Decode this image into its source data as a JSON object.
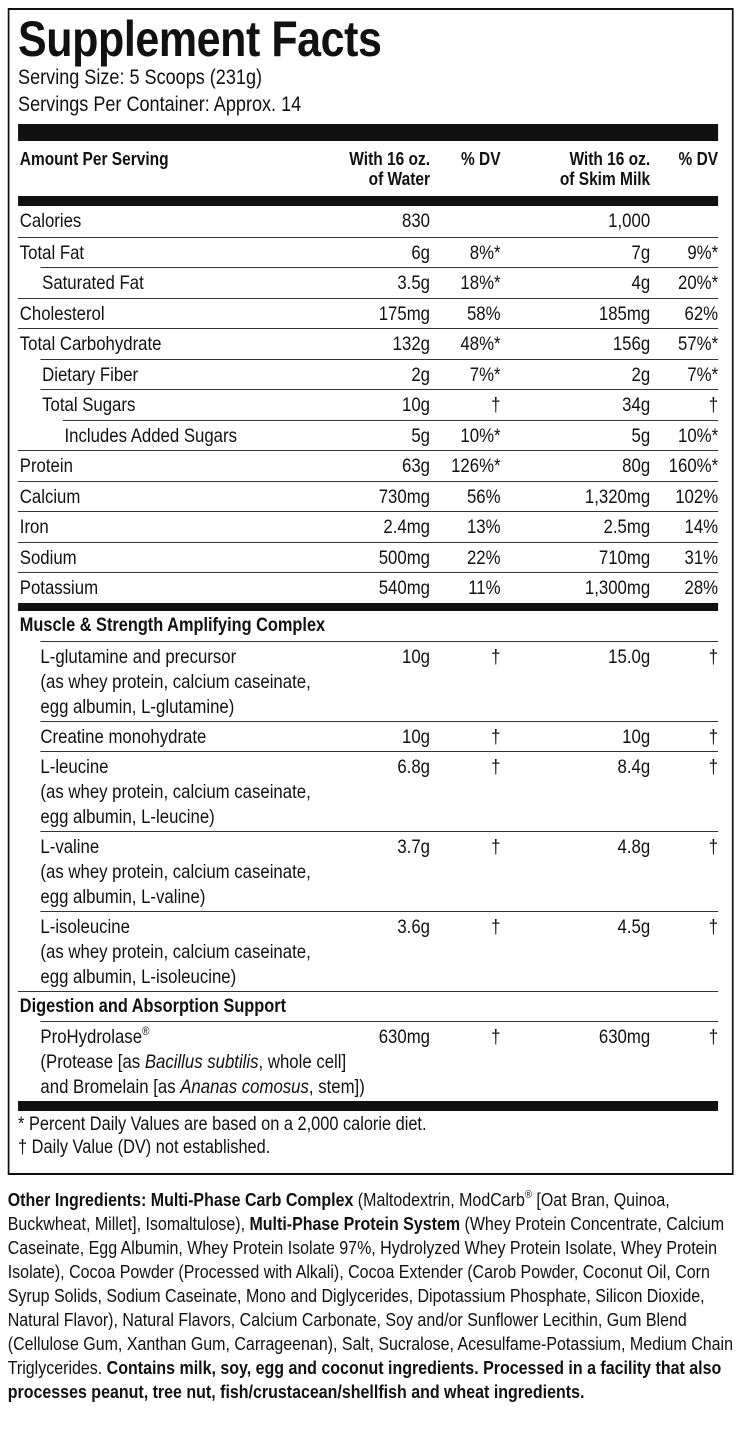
{
  "title": "Supplement Facts",
  "serving_size": "Serving Size: 5 Scoops (231g)",
  "servings_per_container": "Servings Per Container: Approx. 14",
  "header": {
    "amount": "Amount Per Serving",
    "water": [
      "With 16 oz.",
      "of Water"
    ],
    "water_dv": "% DV",
    "milk": [
      "With 16 oz.",
      "of Skim Milk"
    ],
    "milk_dv": "% DV"
  },
  "nutrients": [
    {
      "name": "Calories",
      "water": "830",
      "milk": "1,000"
    },
    {
      "name": "Total Fat",
      "water": "6g",
      "water_dv": "8%*",
      "milk": "7g",
      "milk_dv": "9%*",
      "sub": [
        {
          "name": "Saturated Fat",
          "water": "3.5g",
          "water_dv": "18%*",
          "milk": "4g",
          "milk_dv": "20%*"
        }
      ]
    },
    {
      "name": "Cholesterol",
      "water": "175mg",
      "water_dv": "58%",
      "milk": "185mg",
      "milk_dv": "62%"
    },
    {
      "name": "Total Carbohydrate",
      "water": "132g",
      "water_dv": "48%*",
      "milk": "156g",
      "milk_dv": "57%*",
      "sub": [
        {
          "name": "Dietary Fiber",
          "water": "2g",
          "water_dv": "7%*",
          "milk": "2g",
          "milk_dv": "7%*"
        },
        {
          "name": "Total Sugars",
          "water": "10g",
          "water_dv": "†",
          "milk": "34g",
          "milk_dv": "†",
          "sub": [
            {
              "name": "Includes Added Sugars",
              "water": "5g",
              "water_dv": "10%*",
              "milk": "5g",
              "milk_dv": "10%*"
            }
          ]
        }
      ]
    },
    {
      "name": "Protein",
      "water": "63g",
      "water_dv": "126%*",
      "milk": "80g",
      "milk_dv": "160%*"
    },
    {
      "name": "Calcium",
      "water": "730mg",
      "water_dv": "56%",
      "milk": "1,320mg",
      "milk_dv": "102%"
    },
    {
      "name": "Iron",
      "water": "2.4mg",
      "water_dv": "13%",
      "milk": "2.5mg",
      "milk_dv": "14%"
    },
    {
      "name": "Sodium",
      "water": "500mg",
      "water_dv": "22%",
      "milk": "710mg",
      "milk_dv": "31%"
    },
    {
      "name": "Potassium",
      "water": "540mg",
      "water_dv": "11%",
      "milk": "1,300mg",
      "milk_dv": "28%"
    }
  ],
  "complex": {
    "title": "Muscle & Strength Amplifying Complex",
    "items": [
      {
        "name": "L-glutamine and precursor",
        "detail": [
          "(as whey protein, calcium caseinate,",
          "egg albumin, L-glutamine)"
        ],
        "water": "10g",
        "water_dv": "†",
        "milk": "15.0g",
        "milk_dv": "†"
      },
      {
        "name": "Creatine monohydrate",
        "water": "10g",
        "water_dv": "†",
        "milk": "10g",
        "milk_dv": "†"
      },
      {
        "name": "L-leucine",
        "detail": [
          "(as whey protein, calcium caseinate,",
          "egg albumin, L-leucine)"
        ],
        "water": "6.8g",
        "water_dv": "†",
        "milk": "8.4g",
        "milk_dv": "†"
      },
      {
        "name": "L-valine",
        "detail": [
          "(as whey protein, calcium caseinate,",
          "egg albumin, L-valine)"
        ],
        "water": "3.7g",
        "water_dv": "†",
        "milk": "4.8g",
        "milk_dv": "†"
      },
      {
        "name": "L-isoleucine",
        "detail": [
          "(as whey protein, calcium caseinate,",
          "egg albumin, L-isoleucine)"
        ],
        "water": "3.6g",
        "water_dv": "†",
        "milk": "4.5g",
        "milk_dv": "†"
      }
    ]
  },
  "digestion": {
    "title": "Digestion and Absorption Support",
    "items": [
      {
        "name": "ProHydrolase",
        "name_sup": "®",
        "detail": [
          [
            "(Protease [as ",
            "Bacillus subtilis",
            ", whole cell]"
          ],
          [
            "and Bromelain [as ",
            "Ananas comosus",
            ", stem])"
          ]
        ],
        "water": "630mg",
        "water_dv": "†",
        "milk": "630mg",
        "milk_dv": "†"
      }
    ]
  },
  "footnotes": [
    "* Percent Daily Values are based on a 2,000 calorie diet.",
    "† Daily Value (DV) not established."
  ],
  "other_ingredients": [
    {
      "text": "Other Ingredients: Multi-Phase Carb Complex",
      "style": "bold"
    },
    {
      "text": " (Maltodextrin, ModCarb"
    },
    {
      "text": "®",
      "style": "sup"
    },
    {
      "text": " [Oat Bran, Quinoa, Buckwheat, Millet], Isomaltulose), "
    },
    {
      "text": "Multi-Phase Protein System",
      "style": "bold"
    },
    {
      "text": " (Whey Protein Concentrate, Calcium Caseinate, Egg Albumin, Whey Protein Isolate 97%, Hydrolyzed Whey Protein Isolate, Whey Protein Isolate), Cocoa Powder (Processed with Alkali), Cocoa Extender (Carob Powder, Coconut Oil, Corn Syrup Solids, Sodium Caseinate, Mono and Diglycerides, Dipotassium Phosphate, Silicon Dioxide, Natural Flavor), Natural Flavors, Calcium Carbonate, Soy and/or Sunflower Lecithin, Gum Blend (Cellulose Gum, Xanthan Gum, Carrageenan), Salt, Sucralose, Acesulfame-Potassium, Medium Chain Triglycerides. "
    },
    {
      "text": "Contains milk, soy, egg and coconut ingredients. Processed in a facility that also processes peanut, tree nut, fish/crustacean/shellfish and wheat ingredients.",
      "style": "bold"
    }
  ]
}
